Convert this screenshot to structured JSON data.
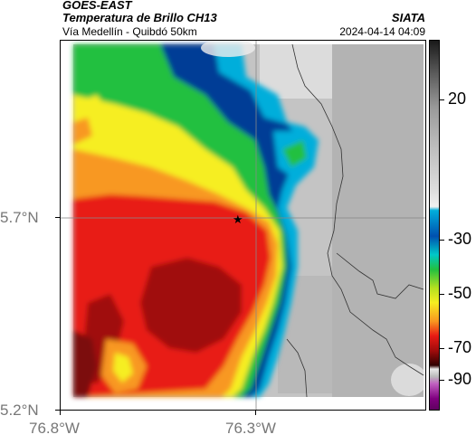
{
  "header": {
    "satellite": "GOES-EAST",
    "product": "Temperatura de Brillo CH13",
    "route": "Vía Medellín - Quibdó 50km",
    "org": "SIATA",
    "datetime": "2024-04-14 04:09"
  },
  "axes": {
    "lat_labels": [
      "5.7°N",
      "5.2°N"
    ],
    "lon_labels": [
      "76.8°W",
      "76.3°W"
    ]
  },
  "colorbar": {
    "labels": [
      "20",
      "-30",
      "-50",
      "-70",
      "-90"
    ]
  },
  "marker": {
    "name": "star"
  }
}
